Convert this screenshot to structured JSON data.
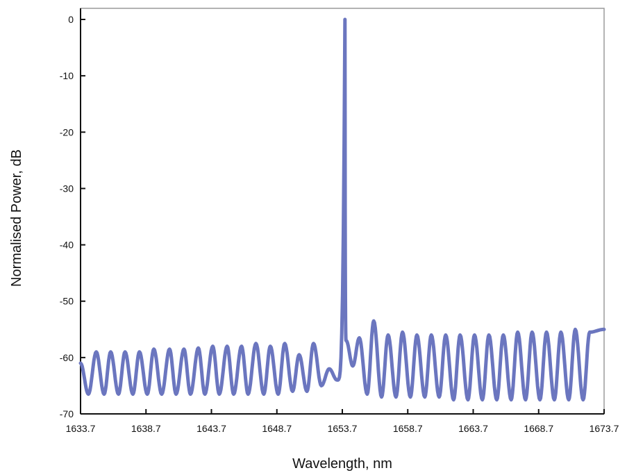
{
  "chart_data": {
    "type": "line",
    "title": "",
    "xlabel": "Wavelength, nm",
    "ylabel": "Normalised Power, dB",
    "xlim": [
      1633.7,
      1673.7
    ],
    "ylim": [
      -70,
      0
    ],
    "x_ticks": [
      "1633.7",
      "1638.7",
      "1643.7",
      "1648.7",
      "1653.7",
      "1658.7",
      "1663.7",
      "1668.7",
      "1673.7"
    ],
    "y_ticks": [
      "0",
      "-10",
      "-20",
      "-30",
      "-40",
      "-50",
      "-60",
      "-70"
    ],
    "grid": false,
    "legend": "none",
    "series": [
      {
        "color": "#6b76bf",
        "main_peak": {
          "x": 1653.9,
          "y": 0
        },
        "side_peaks": [
          {
            "x": 1634.9,
            "y": -59
          },
          {
            "x": 1636.0,
            "y": -59
          },
          {
            "x": 1637.1,
            "y": -59
          },
          {
            "x": 1638.2,
            "y": -59
          },
          {
            "x": 1639.3,
            "y": -58.5
          },
          {
            "x": 1640.5,
            "y": -58.5
          },
          {
            "x": 1641.6,
            "y": -58.5
          },
          {
            "x": 1642.7,
            "y": -58.3
          },
          {
            "x": 1643.8,
            "y": -58
          },
          {
            "x": 1644.9,
            "y": -58
          },
          {
            "x": 1646.0,
            "y": -58
          },
          {
            "x": 1647.1,
            "y": -57.5
          },
          {
            "x": 1648.2,
            "y": -58
          },
          {
            "x": 1649.3,
            "y": -57.5
          },
          {
            "x": 1650.4,
            "y": -59.5
          },
          {
            "x": 1651.5,
            "y": -57.5
          },
          {
            "x": 1652.7,
            "y": -62
          },
          {
            "x": 1654.0,
            "y": -57
          },
          {
            "x": 1655.0,
            "y": -56.5
          },
          {
            "x": 1656.1,
            "y": -53.5
          },
          {
            "x": 1657.2,
            "y": -56
          },
          {
            "x": 1658.3,
            "y": -55.5
          },
          {
            "x": 1659.4,
            "y": -56
          },
          {
            "x": 1660.5,
            "y": -56
          },
          {
            "x": 1661.6,
            "y": -56
          },
          {
            "x": 1662.7,
            "y": -56
          },
          {
            "x": 1663.8,
            "y": -56
          },
          {
            "x": 1664.9,
            "y": -56
          },
          {
            "x": 1666.0,
            "y": -56
          },
          {
            "x": 1667.1,
            "y": -55.5
          },
          {
            "x": 1668.2,
            "y": -55.5
          },
          {
            "x": 1669.3,
            "y": -55.5
          },
          {
            "x": 1670.4,
            "y": -55.5
          },
          {
            "x": 1671.5,
            "y": -55
          },
          {
            "x": 1672.6,
            "y": -55.5
          },
          {
            "x": 1673.7,
            "y": -55
          }
        ],
        "troughs": [
          {
            "x": 1634.3,
            "y": -66.5
          },
          {
            "x": 1635.5,
            "y": -66.5
          },
          {
            "x": 1636.6,
            "y": -66.5
          },
          {
            "x": 1637.7,
            "y": -66.5
          },
          {
            "x": 1638.8,
            "y": -66.5
          },
          {
            "x": 1639.9,
            "y": -66.5
          },
          {
            "x": 1641.0,
            "y": -66.5
          },
          {
            "x": 1642.1,
            "y": -66.5
          },
          {
            "x": 1643.2,
            "y": -66.5
          },
          {
            "x": 1644.3,
            "y": -66.5
          },
          {
            "x": 1645.4,
            "y": -66.5
          },
          {
            "x": 1646.5,
            "y": -66.5
          },
          {
            "x": 1647.7,
            "y": -66.5
          },
          {
            "x": 1648.8,
            "y": -66.5
          },
          {
            "x": 1649.9,
            "y": -66
          },
          {
            "x": 1651.0,
            "y": -66
          },
          {
            "x": 1652.1,
            "y": -65
          },
          {
            "x": 1653.3,
            "y": -64
          },
          {
            "x": 1654.5,
            "y": -61.5
          },
          {
            "x": 1655.6,
            "y": -66.5
          },
          {
            "x": 1656.7,
            "y": -67
          },
          {
            "x": 1657.8,
            "y": -67
          },
          {
            "x": 1658.9,
            "y": -67
          },
          {
            "x": 1660.0,
            "y": -67
          },
          {
            "x": 1661.1,
            "y": -67
          },
          {
            "x": 1662.2,
            "y": -67.5
          },
          {
            "x": 1663.3,
            "y": -67.5
          },
          {
            "x": 1664.4,
            "y": -67.5
          },
          {
            "x": 1665.5,
            "y": -67.5
          },
          {
            "x": 1666.6,
            "y": -67.5
          },
          {
            "x": 1667.7,
            "y": -67.5
          },
          {
            "x": 1668.8,
            "y": -67.5
          },
          {
            "x": 1669.9,
            "y": -67.5
          },
          {
            "x": 1671.0,
            "y": -67.5
          },
          {
            "x": 1672.1,
            "y": -67.5
          }
        ]
      }
    ]
  }
}
